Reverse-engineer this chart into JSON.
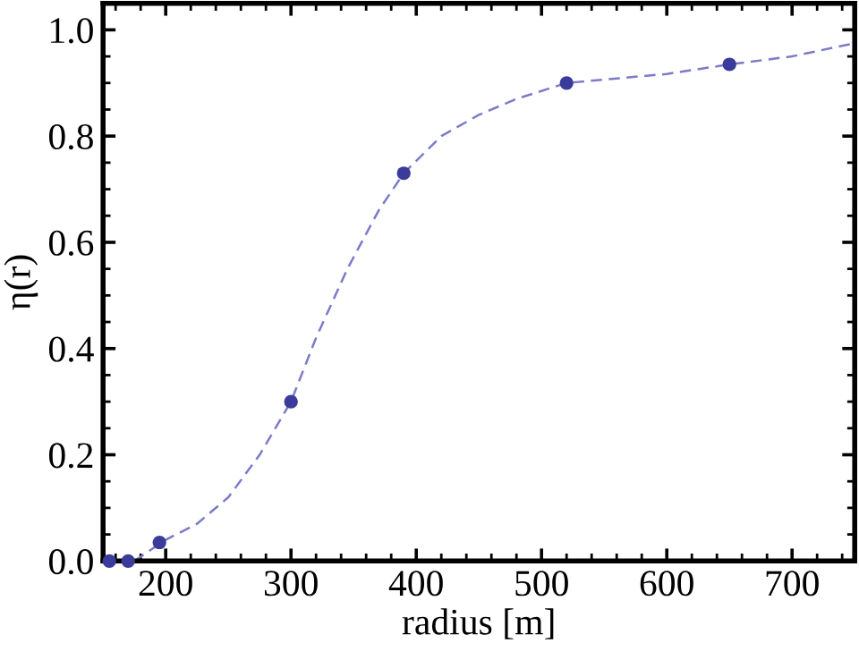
{
  "chart_data": {
    "type": "line",
    "xlabel": "radius [m]",
    "ylabel": "η(r)",
    "series": [
      {
        "color": "#7b7bc8",
        "line_style": "dashed",
        "marker": "none",
        "x": [
          175,
          200,
          225,
          250,
          275,
          300,
          320,
          345,
          370,
          390,
          420,
          450,
          480,
          520,
          600,
          650,
          700,
          750
        ],
        "values": [
          0,
          0.04,
          0.07,
          0.12,
          0.2,
          0.3,
          0.42,
          0.55,
          0.66,
          0.73,
          0.8,
          0.84,
          0.87,
          0.9,
          0.917,
          0.935,
          0.95,
          0.975
        ]
      },
      {
        "type": "scatter",
        "color": "#3b3b9b",
        "marker": "circle",
        "x": [
          155,
          170,
          195,
          300,
          390,
          520,
          650
        ],
        "values": [
          0,
          0,
          0.035,
          0.3,
          0.73,
          0.9,
          0.935
        ]
      }
    ],
    "xlim": [
      150,
      750
    ],
    "ylim": [
      0,
      1.05
    ],
    "xticks": [
      200,
      300,
      400,
      500,
      600,
      700
    ],
    "yticks": [
      {
        "value": 0,
        "label": "0.0"
      },
      {
        "value": 0.2,
        "label": "0.2"
      },
      {
        "value": 0.4,
        "label": "0.4"
      },
      {
        "value": 0.6,
        "label": "0.6"
      },
      {
        "value": 0.8,
        "label": "0.8"
      },
      {
        "value": 1.0,
        "label": "1.0"
      }
    ],
    "grid": false,
    "legend": false
  }
}
